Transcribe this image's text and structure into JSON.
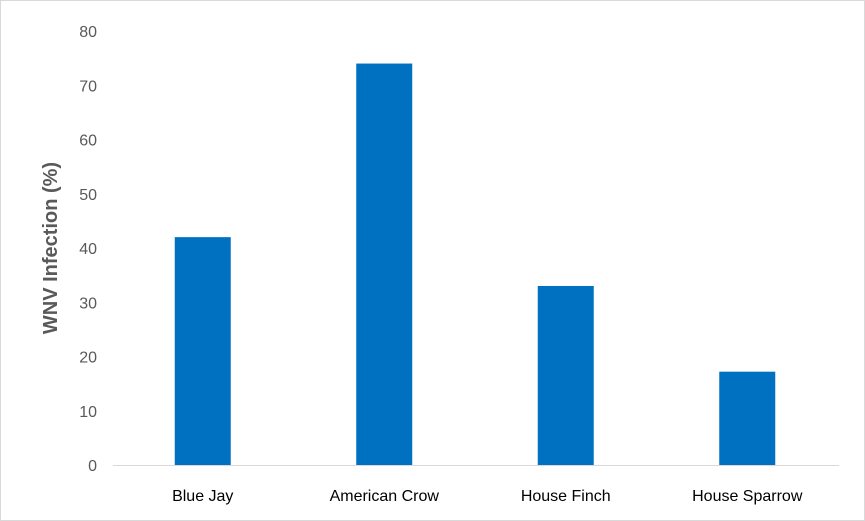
{
  "chart_data": {
    "type": "bar",
    "categories": [
      "Blue Jay",
      "American Crow",
      "House Finch",
      "House Sparrow"
    ],
    "values": [
      42,
      74,
      33,
      17.2
    ],
    "title": "",
    "xlabel": "",
    "ylabel": "WNV Infection (%)",
    "ylim": [
      0,
      80
    ],
    "yticks": [
      0,
      10,
      20,
      30,
      40,
      50,
      60,
      70,
      80
    ],
    "grid": false,
    "legend": "none",
    "bar_color": "#0070C0",
    "axis_color": "#d9d9d9"
  }
}
